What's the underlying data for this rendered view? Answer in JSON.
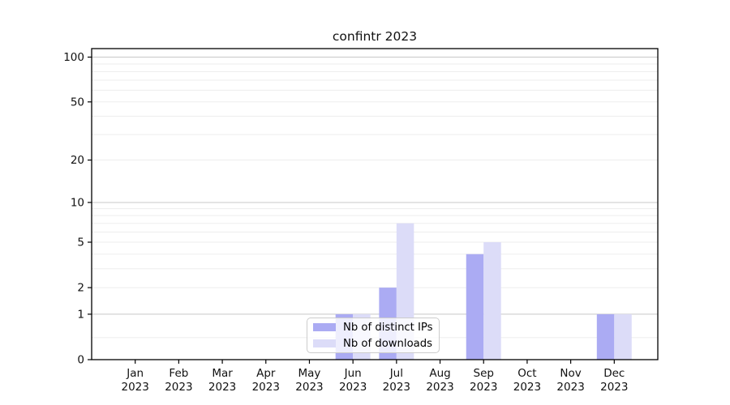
{
  "chart_data": {
    "type": "bar",
    "title": "confintr 2023",
    "months": [
      "Jan",
      "Feb",
      "Mar",
      "Apr",
      "May",
      "Jun",
      "Jul",
      "Aug",
      "Sep",
      "Oct",
      "Nov",
      "Dec"
    ],
    "year_label": "2023",
    "series": [
      {
        "name": "Nb of distinct IPs",
        "color": "#ababf3",
        "values": [
          0,
          0,
          0,
          0,
          0,
          1,
          2,
          0,
          4,
          0,
          0,
          1
        ]
      },
      {
        "name": "Nb of downloads",
        "color": "#dcdcf8",
        "values": [
          0,
          0,
          0,
          0,
          0,
          1,
          7,
          0,
          5,
          0,
          0,
          1
        ]
      }
    ],
    "y_ticks": [
      0,
      1,
      2,
      5,
      10,
      20,
      50,
      100
    ],
    "y_scale": "log1p",
    "y_max": 114,
    "grid_major": [
      1,
      10,
      100
    ],
    "grid_minor": [
      0.4,
      2,
      3,
      4,
      5,
      6,
      7,
      8,
      9,
      20,
      30,
      40,
      50,
      60,
      70,
      80,
      90
    ],
    "grid_major_color": "#c8c8c8",
    "grid_minor_color": "#ededed",
    "axis_color": "#000000",
    "tick_label_color": "#111111",
    "legend_position": "lower center"
  }
}
